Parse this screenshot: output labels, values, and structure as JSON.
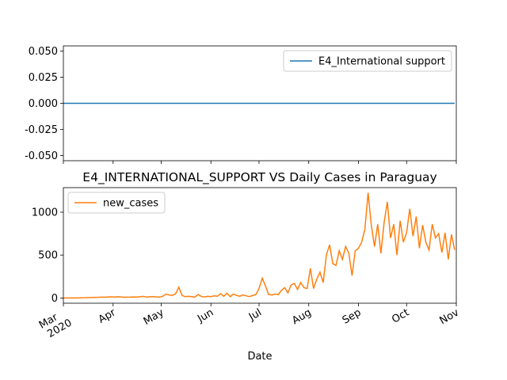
{
  "chart_data": [
    {
      "type": "line",
      "x": [
        0,
        2,
        4,
        6,
        8,
        10,
        12,
        14,
        16,
        18,
        20,
        22,
        24,
        26,
        28,
        30,
        32,
        34,
        36,
        38,
        40,
        42,
        44,
        46,
        48,
        50,
        52,
        54,
        56,
        58,
        60,
        62,
        64,
        66,
        68,
        70,
        72,
        74,
        76,
        78,
        80,
        82,
        84,
        86,
        88,
        90,
        92,
        94,
        96,
        98,
        100,
        102,
        104,
        106,
        108,
        110,
        112,
        114,
        116,
        118,
        120,
        122,
        124,
        126,
        128,
        130,
        132,
        134,
        136,
        138,
        140,
        142,
        144,
        146,
        148,
        150,
        152,
        154,
        156,
        158,
        160,
        162,
        164,
        166,
        168,
        170,
        172,
        174,
        176,
        178,
        180,
        182,
        184,
        186,
        188,
        190,
        192,
        194,
        196,
        198,
        200,
        202,
        204,
        206,
        208,
        210,
        212,
        214,
        216,
        218,
        220,
        222,
        224,
        226,
        228,
        230,
        232,
        234,
        236,
        238,
        240,
        242,
        244
      ],
      "series": [
        {
          "name": "E4_International support",
          "color": "#1f77b4",
          "values": [
            0,
            0,
            0,
            0,
            0,
            0,
            0,
            0,
            0,
            0,
            0,
            0,
            0,
            0,
            0,
            0,
            0,
            0,
            0,
            0,
            0,
            0,
            0,
            0,
            0,
            0,
            0,
            0,
            0,
            0,
            0,
            0,
            0,
            0,
            0,
            0,
            0,
            0,
            0,
            0,
            0,
            0,
            0,
            0,
            0,
            0,
            0,
            0,
            0,
            0,
            0,
            0,
            0,
            0,
            0,
            0,
            0,
            0,
            0,
            0,
            0,
            0,
            0,
            0,
            0,
            0,
            0,
            0,
            0,
            0,
            0,
            0,
            0,
            0,
            0,
            0,
            0,
            0,
            0,
            0,
            0,
            0,
            0,
            0,
            0,
            0,
            0,
            0,
            0,
            0,
            0,
            0,
            0,
            0,
            0,
            0,
            0,
            0,
            0,
            0,
            0,
            0,
            0,
            0,
            0,
            0,
            0,
            0,
            0,
            0,
            0,
            0,
            0,
            0,
            0,
            0,
            0,
            0,
            0,
            0,
            0,
            0,
            0
          ]
        }
      ],
      "xlim": [
        0,
        245
      ],
      "ylim": [
        -0.055,
        0.055
      ],
      "yticks": [
        {
          "value": -0.05,
          "label": "-0.050"
        },
        {
          "value": -0.025,
          "label": "-0.025"
        },
        {
          "value": 0,
          "label": "0.000"
        },
        {
          "value": 0.025,
          "label": "0.025"
        },
        {
          "value": 0.05,
          "label": "0.050"
        }
      ],
      "legend": "upper right"
    },
    {
      "type": "line",
      "title": "E4_INTERNATIONAL_SUPPORT VS Daily Cases in Paraguay",
      "x_label": "Date",
      "x": [
        0,
        2,
        4,
        6,
        8,
        10,
        12,
        14,
        16,
        18,
        20,
        22,
        24,
        26,
        28,
        30,
        32,
        34,
        36,
        38,
        40,
        42,
        44,
        46,
        48,
        50,
        52,
        54,
        56,
        58,
        60,
        62,
        64,
        66,
        68,
        70,
        72,
        74,
        76,
        78,
        80,
        82,
        84,
        86,
        88,
        90,
        92,
        94,
        96,
        98,
        100,
        102,
        104,
        106,
        108,
        110,
        112,
        114,
        116,
        118,
        120,
        122,
        124,
        126,
        128,
        130,
        132,
        134,
        136,
        138,
        140,
        142,
        144,
        146,
        148,
        150,
        152,
        154,
        156,
        158,
        160,
        162,
        164,
        166,
        168,
        170,
        172,
        174,
        176,
        178,
        180,
        182,
        184,
        186,
        188,
        190,
        192,
        194,
        196,
        198,
        200,
        202,
        204,
        206,
        208,
        210,
        212,
        214,
        216,
        218,
        220,
        222,
        224,
        226,
        228,
        230,
        232,
        234,
        236,
        238,
        240,
        242,
        244
      ],
      "series": [
        {
          "name": "new_cases",
          "color": "#ff7f0e",
          "values": [
            0,
            0,
            0,
            0,
            0,
            1,
            2,
            3,
            5,
            6,
            7,
            8,
            10,
            8,
            12,
            14,
            10,
            15,
            12,
            8,
            9,
            10,
            12,
            11,
            15,
            18,
            10,
            14,
            16,
            12,
            10,
            20,
            45,
            35,
            30,
            50,
            125,
            30,
            15,
            20,
            15,
            10,
            40,
            18,
            12,
            20,
            15,
            25,
            20,
            50,
            20,
            55,
            15,
            45,
            30,
            20,
            35,
            25,
            15,
            30,
            40,
            110,
            230,
            140,
            40,
            35,
            45,
            40,
            90,
            120,
            60,
            150,
            170,
            100,
            180,
            120,
            110,
            345,
            110,
            220,
            300,
            180,
            500,
            620,
            400,
            380,
            550,
            450,
            600,
            520,
            260,
            550,
            580,
            650,
            800,
            1225,
            850,
            600,
            860,
            520,
            880,
            1120,
            700,
            860,
            500,
            900,
            650,
            760,
            1040,
            720,
            950,
            580,
            850,
            650,
            560,
            860,
            700,
            750,
            530,
            760,
            450,
            740,
            560
          ]
        }
      ],
      "xlim": [
        0,
        245
      ],
      "xticks": [
        {
          "value": 0,
          "label": "Mar 2020"
        },
        {
          "value": 31,
          "label": "Apr"
        },
        {
          "value": 61,
          "label": "May"
        },
        {
          "value": 92,
          "label": "Jun"
        },
        {
          "value": 122,
          "label": "Jul"
        },
        {
          "value": 153,
          "label": "Aug"
        },
        {
          "value": 184,
          "label": "Sep"
        },
        {
          "value": 214,
          "label": "Oct"
        },
        {
          "value": 245,
          "label": "Nov"
        }
      ],
      "ylim": [
        -61,
        1286
      ],
      "yticks": [
        0,
        500,
        1000
      ],
      "legend": "upper left"
    }
  ]
}
